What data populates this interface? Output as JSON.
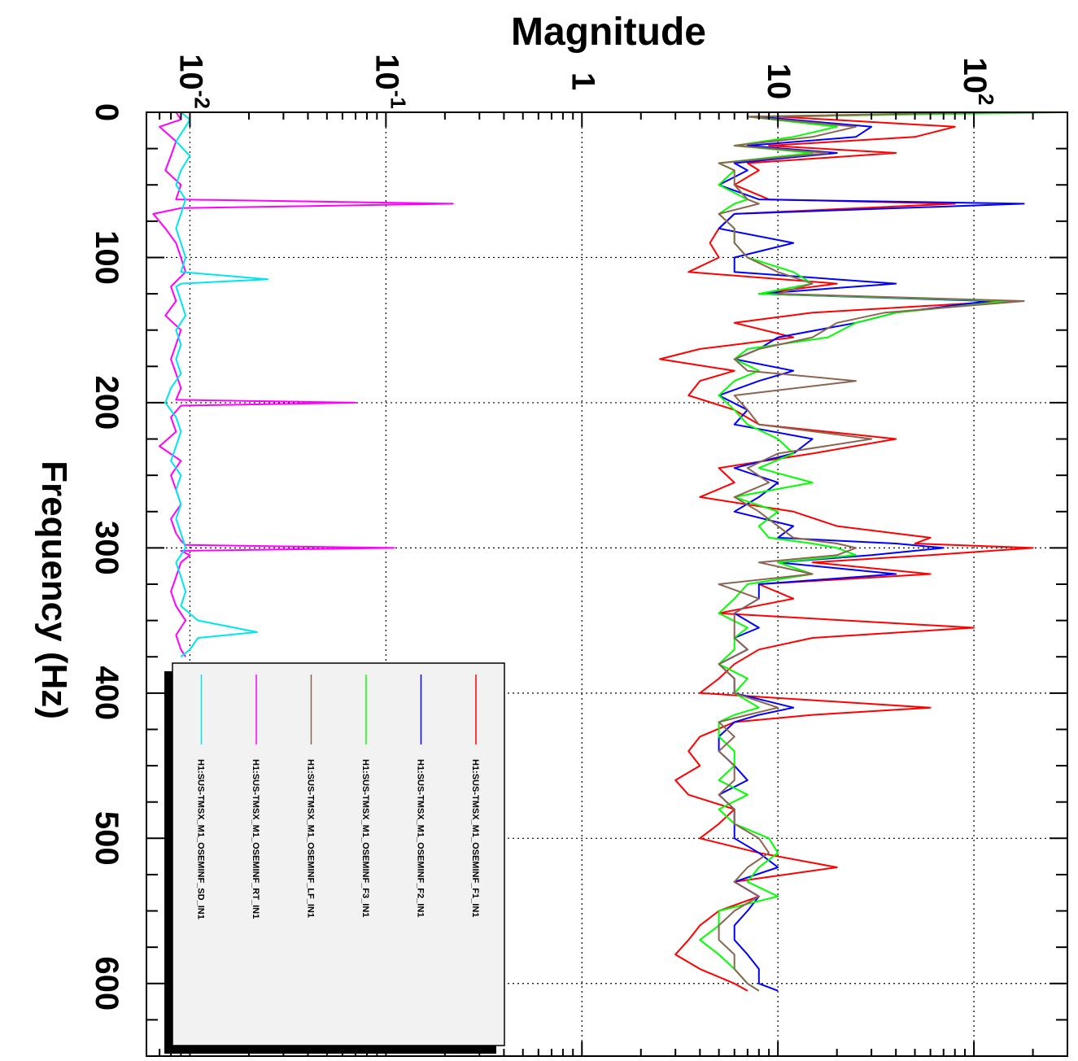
{
  "chart_data": {
    "type": "line",
    "orientation": "rotated 90 degrees clockwise (frequency axis runs top-to-bottom, magnitude axis runs left-to-right)",
    "xlabel": "Frequency (Hz)",
    "ylabel": "Magnitude",
    "x_ticks": [
      "0",
      "100",
      "200",
      "300",
      "400",
      "500",
      "600"
    ],
    "y_ticks": [
      {
        "base": "10",
        "exp": "-2"
      },
      {
        "base": "10",
        "exp": "-1"
      },
      {
        "base": "1",
        "exp": ""
      },
      {
        "base": "10",
        "exp": ""
      },
      {
        "base": "10",
        "exp": "2"
      }
    ],
    "xlim": [
      0,
      650
    ],
    "ylim": [
      0.006,
      300
    ],
    "y_scale": "log",
    "grid": true,
    "legend_position": "bottom-right",
    "series": [
      {
        "name": "H1:SUS-TMSX_M1_OSEMINF_F1_IN1",
        "color": "#ff0000",
        "x": [
          0,
          3,
          10,
          17,
          23,
          28,
          35,
          40,
          50,
          60,
          63,
          70,
          80,
          90,
          100,
          110,
          118,
          125,
          130,
          138,
          145,
          155,
          163,
          170,
          178,
          185,
          195,
          205,
          215,
          225,
          235,
          245,
          255,
          265,
          275,
          285,
          293,
          297,
          300,
          305,
          310,
          318,
          325,
          335,
          345,
          355,
          362,
          370,
          380,
          390,
          400,
          410,
          415,
          420,
          430,
          440,
          450,
          460,
          470,
          480,
          490,
          500,
          510,
          520,
          530,
          540,
          550,
          560,
          570,
          580,
          590,
          600,
          605
        ],
        "y": [
          200,
          10,
          80,
          50,
          9,
          40,
          7,
          8,
          6,
          9,
          80,
          6,
          5,
          4.5,
          5,
          3.5,
          20,
          8,
          150,
          15,
          6,
          12,
          4,
          2.5,
          6,
          4,
          3.5,
          6,
          8,
          40,
          15,
          5,
          6,
          4,
          12,
          20,
          60,
          50,
          200,
          60,
          15,
          60,
          8,
          12,
          5,
          100,
          15,
          8,
          6,
          5,
          4,
          60,
          15,
          6,
          4,
          3.5,
          4,
          3,
          3.5,
          6,
          5,
          4,
          8,
          20,
          6,
          8,
          5,
          4,
          3.5,
          3,
          4,
          6,
          7
        ]
      },
      {
        "name": "H1:SUS-TMSX_M1_OSEMINF_F2_IN1",
        "color": "#0000ff",
        "x": [
          0,
          3,
          10,
          17,
          23,
          28,
          35,
          40,
          50,
          60,
          63,
          70,
          80,
          90,
          100,
          110,
          118,
          125,
          130,
          138,
          145,
          155,
          163,
          170,
          178,
          185,
          195,
          205,
          215,
          225,
          235,
          245,
          255,
          265,
          275,
          285,
          293,
          297,
          300,
          305,
          310,
          318,
          325,
          335,
          345,
          355,
          362,
          370,
          380,
          390,
          400,
          410,
          415,
          420,
          430,
          440,
          450,
          460,
          470,
          480,
          490,
          500,
          510,
          520,
          530,
          540,
          550,
          560,
          570,
          580,
          590,
          600,
          605
        ],
        "y": [
          150,
          8,
          30,
          25,
          7,
          20,
          6,
          7,
          5,
          8,
          180,
          6,
          5,
          12,
          6,
          6,
          40,
          8,
          120,
          40,
          25,
          10,
          8,
          6,
          12,
          8,
          5,
          7,
          6,
          15,
          12,
          6,
          10,
          8,
          6,
          12,
          10,
          40,
          70,
          30,
          10,
          40,
          8,
          8,
          6,
          8,
          6,
          7,
          5,
          6,
          6,
          12,
          8,
          6,
          5,
          5,
          6,
          7,
          5,
          6,
          6,
          6,
          8,
          10,
          6,
          8,
          7,
          6,
          6,
          7,
          8,
          8,
          10
        ]
      },
      {
        "name": "H1:SUS-TMSX_M1_OSEMINF_F3_IN1",
        "color": "#00ff00",
        "x": [
          0,
          3,
          10,
          17,
          23,
          28,
          35,
          40,
          50,
          60,
          63,
          70,
          80,
          90,
          100,
          110,
          118,
          125,
          130,
          138,
          145,
          155,
          163,
          170,
          178,
          185,
          195,
          205,
          215,
          225,
          235,
          245,
          255,
          265,
          275,
          285,
          293,
          297,
          300,
          305,
          310,
          318,
          325,
          335,
          345,
          355,
          362,
          370,
          380,
          390,
          400,
          410,
          415,
          420,
          430,
          440,
          450,
          460,
          470,
          480,
          490,
          500,
          510,
          520,
          530,
          540,
          550,
          560,
          570,
          580,
          590,
          600,
          605
        ],
        "y": [
          300,
          7,
          20,
          12,
          6,
          15,
          5,
          6,
          5,
          7,
          6,
          5,
          6,
          6,
          7,
          12,
          15,
          8,
          150,
          40,
          25,
          18,
          7,
          6,
          8,
          6,
          5,
          6,
          7,
          10,
          12,
          8,
          15,
          6,
          10,
          8,
          9,
          15,
          20,
          25,
          10,
          15,
          7,
          6,
          5,
          7,
          6,
          6,
          5,
          7,
          6,
          8,
          6,
          5,
          5,
          6,
          6,
          5,
          7,
          5,
          6,
          9,
          10,
          8,
          7,
          10,
          5,
          5,
          4,
          5,
          6,
          7,
          8
        ]
      },
      {
        "name": "H1:SUS-TMSX_M1_OSEMINF_LF_IN1",
        "color": "#8b6552",
        "x": [
          0,
          3,
          10,
          17,
          23,
          28,
          35,
          40,
          50,
          60,
          63,
          70,
          80,
          90,
          100,
          110,
          118,
          125,
          130,
          138,
          145,
          155,
          163,
          170,
          178,
          185,
          195,
          205,
          215,
          225,
          235,
          245,
          255,
          265,
          275,
          285,
          293,
          297,
          300,
          305,
          310,
          318,
          325,
          335,
          345,
          355,
          362,
          370,
          380,
          390,
          400,
          410,
          415,
          420,
          430,
          440,
          450,
          460,
          470,
          480,
          490,
          500,
          510,
          520,
          530,
          540,
          550,
          560,
          570,
          580,
          590,
          600,
          605
        ],
        "y": [
          120,
          7,
          25,
          15,
          6,
          18,
          5,
          6,
          6,
          7,
          8,
          5,
          6,
          6,
          7,
          10,
          15,
          10,
          180,
          35,
          20,
          15,
          8,
          6,
          7,
          25,
          6,
          7,
          8,
          30,
          10,
          7,
          9,
          6,
          8,
          10,
          12,
          20,
          25,
          20,
          8,
          15,
          5,
          8,
          6,
          6,
          6,
          7,
          5,
          6,
          6,
          10,
          7,
          5,
          6,
          5,
          6,
          6,
          5,
          6,
          6,
          8,
          9,
          7,
          6,
          8,
          6,
          5,
          5,
          6,
          6,
          7,
          8
        ]
      },
      {
        "name": "H1:SUS-TMSX_M1_OSEMINF_RT_IN1",
        "color": "#ff00ff",
        "x": [
          0,
          5,
          10,
          20,
          30,
          40,
          50,
          60,
          63,
          66,
          70,
          80,
          90,
          100,
          110,
          120,
          130,
          140,
          150,
          160,
          170,
          180,
          190,
          198,
          200,
          202,
          210,
          220,
          230,
          240,
          250,
          260,
          270,
          280,
          290,
          295,
          298,
          300,
          302,
          305,
          310,
          320,
          330,
          340,
          350,
          360,
          370,
          375
        ],
        "y": [
          0.0085,
          0.009,
          0.007,
          0.0085,
          0.008,
          0.0075,
          0.009,
          0.0085,
          0.22,
          0.009,
          0.0065,
          0.0075,
          0.0085,
          0.009,
          0.0095,
          0.008,
          0.0085,
          0.0075,
          0.009,
          0.0085,
          0.008,
          0.0085,
          0.009,
          0.0085,
          0.07,
          0.009,
          0.008,
          0.0085,
          0.007,
          0.009,
          0.008,
          0.0085,
          0.009,
          0.008,
          0.0085,
          0.009,
          0.0095,
          0.11,
          0.009,
          0.01,
          0.009,
          0.0085,
          0.008,
          0.0085,
          0.0095,
          0.0085,
          0.009,
          0.0095
        ]
      },
      {
        "name": "H1:SUS-TMSX_M1_OSEMINF_SD_IN1",
        "color": "#00e5ee",
        "x": [
          0,
          5,
          10,
          20,
          30,
          40,
          50,
          60,
          70,
          80,
          90,
          100,
          110,
          115,
          118,
          120,
          130,
          140,
          150,
          160,
          170,
          180,
          190,
          200,
          210,
          220,
          230,
          240,
          250,
          260,
          270,
          280,
          290,
          300,
          310,
          320,
          330,
          340,
          350,
          358,
          362,
          370,
          375
        ],
        "y": [
          0.009,
          0.01,
          0.0095,
          0.0085,
          0.01,
          0.009,
          0.0085,
          0.0095,
          0.009,
          0.0085,
          0.009,
          0.0095,
          0.009,
          0.025,
          0.009,
          0.0085,
          0.009,
          0.0095,
          0.0085,
          0.009,
          0.0085,
          0.009,
          0.008,
          0.0075,
          0.0085,
          0.009,
          0.0085,
          0.008,
          0.009,
          0.0085,
          0.009,
          0.0085,
          0.009,
          0.0095,
          0.0085,
          0.009,
          0.0095,
          0.009,
          0.011,
          0.022,
          0.011,
          0.01,
          0.009
        ]
      }
    ]
  }
}
